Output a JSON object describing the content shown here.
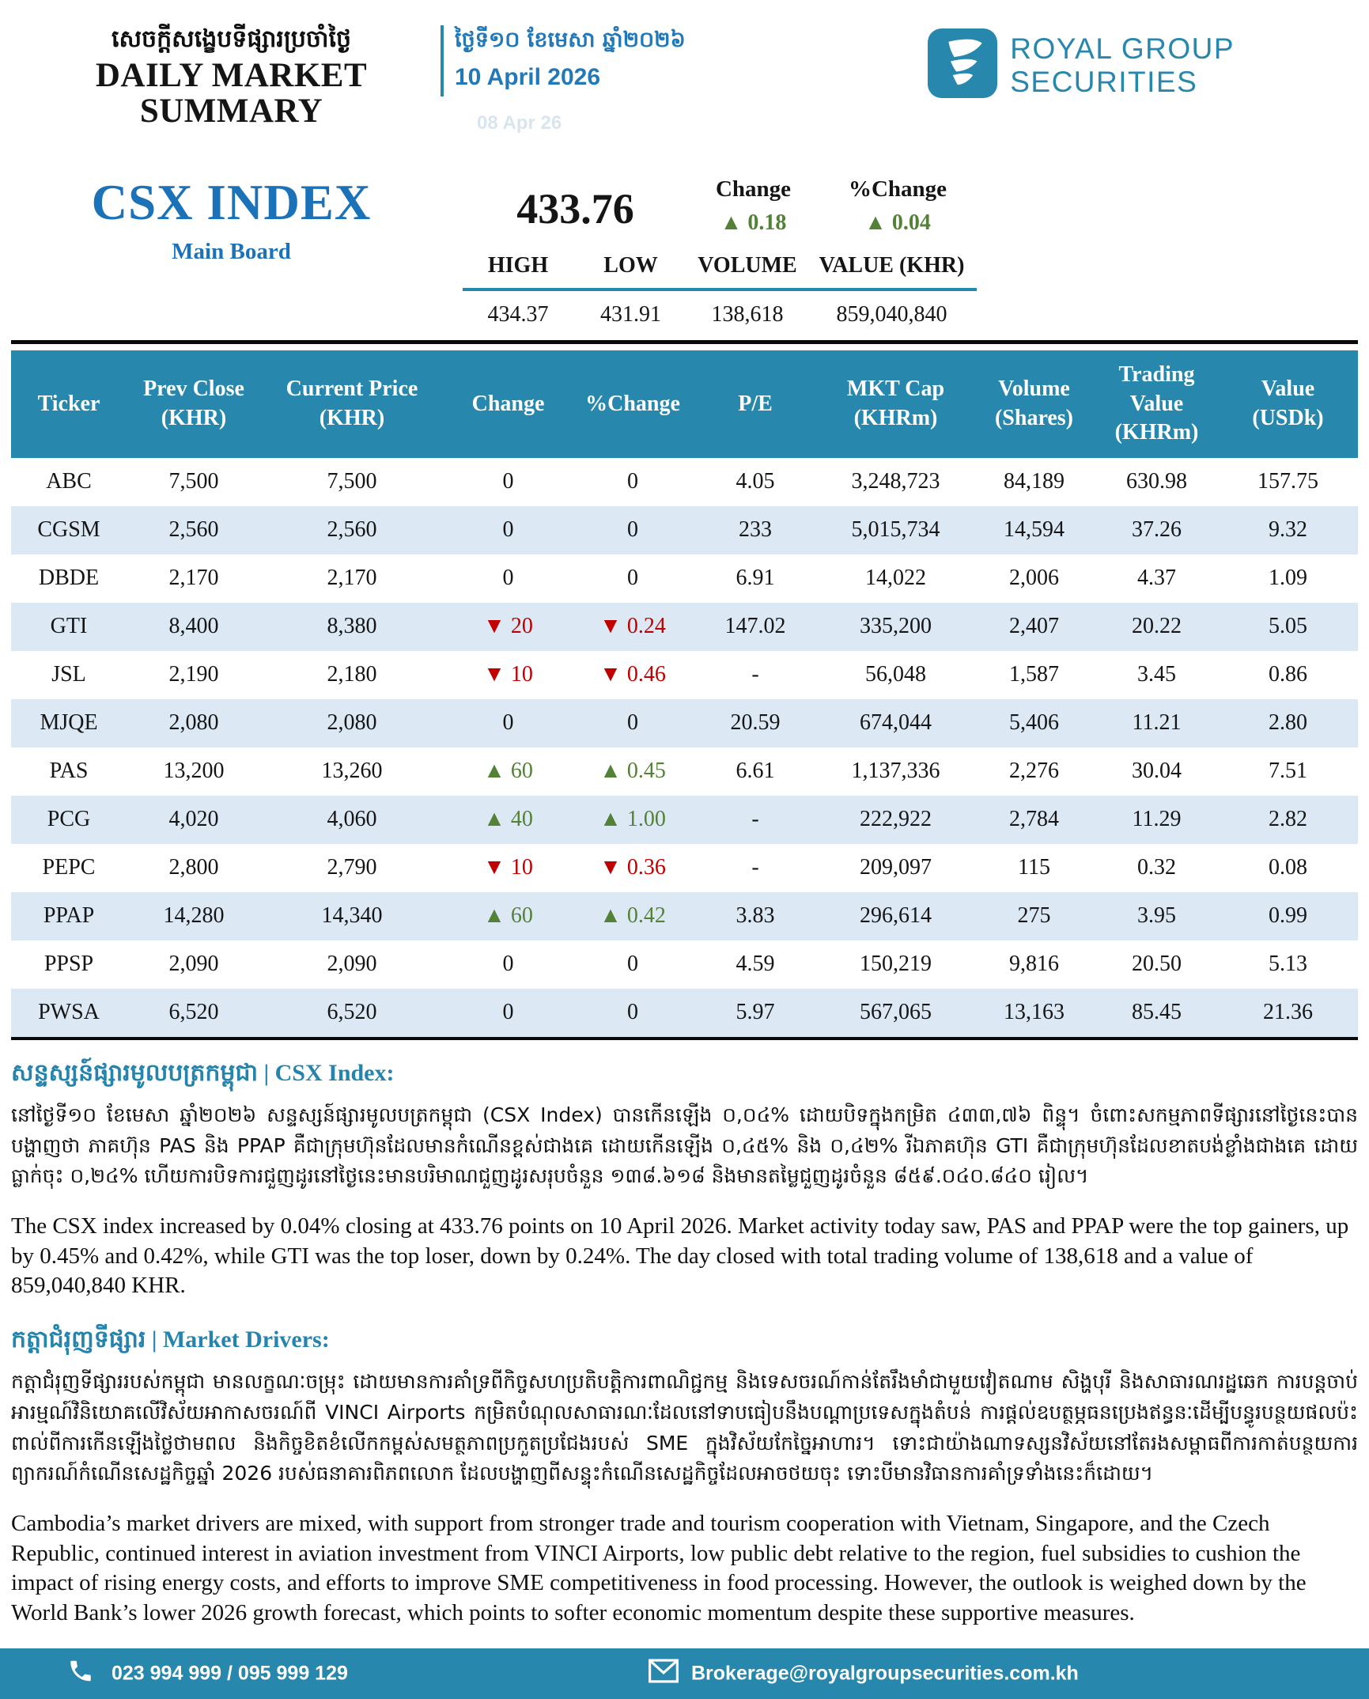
{
  "colors": {
    "brand_teal": "#2787ad",
    "title_blue": "#1b72b8",
    "date_blue": "#2379b8",
    "up_green": "#538135",
    "down_red": "#c00000",
    "row_alt": "#dce9f5"
  },
  "header": {
    "title_khmer": "សេចក្តីសង្ខេបទីផ្សារប្រចាំថ្ងៃ",
    "title_english": "DAILY MARKET SUMMARY",
    "date_khmer": "ថ្ងៃទី១០ ខែមេសា ឆ្នាំ២០២៦",
    "date_english": "10 April 2026",
    "date_watermark": "08 Apr 26",
    "logo_line1": "ROYAL GROUP",
    "logo_line2": "SECURITIES"
  },
  "index_summary": {
    "name": "CSX INDEX",
    "board": "Main Board",
    "value": "433.76",
    "up_arrow": "▲",
    "change_label": "Change",
    "change_value": "0.18",
    "pct_change_label": "%Change",
    "pct_change_value": "0.04",
    "stats": {
      "high_label": "HIGH",
      "high": "434.37",
      "low_label": "LOW",
      "low": "431.91",
      "volume_label": "VOLUME",
      "volume": "138,618",
      "value_label": "VALUE (KHR)",
      "value": "859,040,840"
    }
  },
  "stock_table": {
    "up_arrow": "▲",
    "down_arrow": "▼",
    "columns": [
      {
        "key": "ticker",
        "l1": "Ticker"
      },
      {
        "key": "prev-close",
        "l1": "Prev Close",
        "l2": "(KHR)"
      },
      {
        "key": "current-price",
        "l1": "Current Price",
        "l2": "(KHR)"
      },
      {
        "key": "change",
        "l1": "Change"
      },
      {
        "key": "pct-change",
        "l1": "%Change"
      },
      {
        "key": "pe",
        "l1": "P/E"
      },
      {
        "key": "mkt-cap",
        "l1": "MKT Cap",
        "l2": "(KHRm)"
      },
      {
        "key": "volume",
        "l1": "Volume",
        "l2": "(Shares)"
      },
      {
        "key": "value-khrm",
        "top": "Trading",
        "l1": "Value",
        "l2": "(KHRm)"
      },
      {
        "key": "value-usdk",
        "l1": "Value",
        "l2": "(USDk)"
      }
    ],
    "rows": [
      {
        "ticker": "ABC",
        "prev_close": "7,500",
        "current_price": "7,500",
        "dir": "flat",
        "change": "0",
        "pct_change": "0",
        "pe": "4.05",
        "mkt_cap": "3,248,723",
        "volume": "84,189",
        "value_khrm": "630.98",
        "value_usdk": "157.75"
      },
      {
        "ticker": "CGSM",
        "prev_close": "2,560",
        "current_price": "2,560",
        "dir": "flat",
        "change": "0",
        "pct_change": "0",
        "pe": "233",
        "mkt_cap": "5,015,734",
        "volume": "14,594",
        "value_khrm": "37.26",
        "value_usdk": "9.32"
      },
      {
        "ticker": "DBDE",
        "prev_close": "2,170",
        "current_price": "2,170",
        "dir": "flat",
        "change": "0",
        "pct_change": "0",
        "pe": "6.91",
        "mkt_cap": "14,022",
        "volume": "2,006",
        "value_khrm": "4.37",
        "value_usdk": "1.09"
      },
      {
        "ticker": "GTI",
        "prev_close": "8,400",
        "current_price": "8,380",
        "dir": "down",
        "change": "20",
        "pct_change": "0.24",
        "pe": "147.02",
        "mkt_cap": "335,200",
        "volume": "2,407",
        "value_khrm": "20.22",
        "value_usdk": "5.05"
      },
      {
        "ticker": "JSL",
        "prev_close": "2,190",
        "current_price": "2,180",
        "dir": "down",
        "change": "10",
        "pct_change": "0.46",
        "pe": "-",
        "mkt_cap": "56,048",
        "volume": "1,587",
        "value_khrm": "3.45",
        "value_usdk": "0.86"
      },
      {
        "ticker": "MJQE",
        "prev_close": "2,080",
        "current_price": "2,080",
        "dir": "flat",
        "change": "0",
        "pct_change": "0",
        "pe": "20.59",
        "mkt_cap": "674,044",
        "volume": "5,406",
        "value_khrm": "11.21",
        "value_usdk": "2.80"
      },
      {
        "ticker": "PAS",
        "prev_close": "13,200",
        "current_price": "13,260",
        "dir": "up",
        "change": "60",
        "pct_change": "0.45",
        "pe": "6.61",
        "mkt_cap": "1,137,336",
        "volume": "2,276",
        "value_khrm": "30.04",
        "value_usdk": "7.51"
      },
      {
        "ticker": "PCG",
        "prev_close": "4,020",
        "current_price": "4,060",
        "dir": "up",
        "change": "40",
        "pct_change": "1.00",
        "pe": "-",
        "mkt_cap": "222,922",
        "volume": "2,784",
        "value_khrm": "11.29",
        "value_usdk": "2.82"
      },
      {
        "ticker": "PEPC",
        "prev_close": "2,800",
        "current_price": "2,790",
        "dir": "down",
        "change": "10",
        "pct_change": "0.36",
        "pe": "-",
        "mkt_cap": "209,097",
        "volume": "115",
        "value_khrm": "0.32",
        "value_usdk": "0.08"
      },
      {
        "ticker": "PPAP",
        "prev_close": "14,280",
        "current_price": "14,340",
        "dir": "up",
        "change": "60",
        "pct_change": "0.42",
        "pe": "3.83",
        "mkt_cap": "296,614",
        "volume": "275",
        "value_khrm": "3.95",
        "value_usdk": "0.99"
      },
      {
        "ticker": "PPSP",
        "prev_close": "2,090",
        "current_price": "2,090",
        "dir": "flat",
        "change": "0",
        "pct_change": "0",
        "pe": "4.59",
        "mkt_cap": "150,219",
        "volume": "9,816",
        "value_khrm": "20.50",
        "value_usdk": "5.13"
      },
      {
        "ticker": "PWSA",
        "prev_close": "6,520",
        "current_price": "6,520",
        "dir": "flat",
        "change": "0",
        "pct_change": "0",
        "pe": "5.97",
        "mkt_cap": "567,065",
        "volume": "13,163",
        "value_khrm": "85.45",
        "value_usdk": "21.36"
      }
    ]
  },
  "csx_section": {
    "title_khmer": "សន្ទស្សន៍ផ្សារមូលបត្រកម្ពុជា",
    "separator": "|",
    "title_latin": "CSX Index:",
    "body_khmer": "នៅថ្ងៃទី១០ ខែមេសា ឆ្នាំ២០២៦ សន្ទស្សន៍ផ្សារមូលបត្រកម្ពុជា (CSX Index) បានកើនឡើង ០,០៤% ដោយបិទក្នុងកម្រិត ៤៣៣,៧៦ ពិន្ទុ។ ចំពោះសកម្មភាពទីផ្សារនៅថ្ងៃនេះបានបង្ហាញថា ភាគហ៊ុន PAS និង PPAP គឺជាក្រុមហ៊ុនដែលមានកំណើនខ្ពស់ជាងគេ ដោយកើនឡើង ០,៤៥% និង ០,៤២% រីឯភាគហ៊ុន GTI គឺជាក្រុមហ៊ុនដែលខាតបង់ខ្លាំងជាងគេ ដោយធ្លាក់ចុះ ០,២៤% ហើយការបិទការជួញដូរនៅថ្ងៃនេះមានបរិមាណជួញដូរសរុបចំនួន ១៣៨.៦១៨ និងមានតម្លៃជួញដូរចំនួន ៨៥៩.០៤០.៨៤០ រៀល។",
    "body_english": "The CSX index increased by 0.04% closing at 433.76 points on 10 April 2026. Market activity today saw, PAS and PPAP were the top gainers, up by 0.45% and 0.42%, while GTI was the top loser, down by 0.24%. The day closed with total trading volume of 138,618 and a value of 859,040,840 KHR."
  },
  "drivers_section": {
    "title_khmer": "កត្តាជំរុញទីផ្សារ",
    "separator": "|",
    "title_latin": "Market Drivers:",
    "body_khmer": "កត្តាជំរុញទីផ្សាររបស់កម្ពុជា មានលក្ខណៈចម្រុះ ដោយមានការគាំទ្រពីកិច្ចសហប្រតិបត្តិការពាណិជ្ជកម្ម និងទេសចរណ៍កាន់តែរឹងមាំជាមួយវៀតណាម សិង្ហបុរី និងសាធារណរដ្ឋឆេក ការបន្តចាប់អារម្មណ៍វិនិយោគលើវិស័យអាកាសចរណ៍ពី VINCI Airports កម្រិតបំណុលសាធារណៈដែលនៅទាបធៀបនឹងបណ្តាប្រទេសក្នុងតំបន់ ការផ្តល់ឧបត្ថម្ភធនប្រេងឥន្ធនៈដើម្បីបន្ធូរបន្ថយផលប៉ះពាល់ពីការកើនឡើងថ្លៃថាមពល និងកិច្ចខិតខំលើកកម្ពស់សមត្ថភាពប្រកួតប្រជែងរបស់ SME ក្នុងវិស័យកែច្នៃអាហារ។ ទោះជាយ៉ាងណាទស្សនវិស័យនៅតែរងសម្ពាធពីការកាត់បន្ថយការព្យាករណ៍កំណើនសេដ្ឋកិច្ចឆ្នាំ 2026 របស់ធនាគារពិភពលោក ដែលបង្ហាញពីសន្ទុះកំណើនសេដ្ឋកិច្ចដែលអាចថយចុះ ទោះបីមានវិធានការគាំទ្រទាំងនេះក៏ដោយ។",
    "body_english": "Cambodia’s market drivers are mixed, with support from stronger trade and tourism cooperation with Vietnam, Singapore, and the Czech Republic, continued interest in aviation investment from VINCI Airports, low public debt relative to the region, fuel subsidies to cushion the impact of rising energy costs, and efforts to improve SME competitiveness in food processing. However, the outlook is weighed down by the World Bank’s lower 2026 growth forecast, which points to softer economic momentum despite these supportive measures."
  },
  "footer": {
    "phone": "023 994 999 / 095 999 129",
    "email": "Brokerage@royalgroupsecurities.com.kh"
  }
}
